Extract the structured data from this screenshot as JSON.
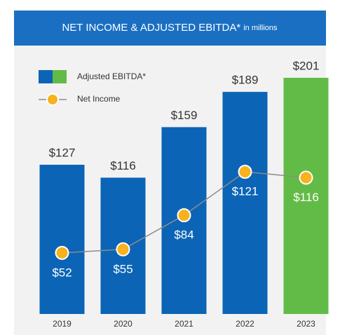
{
  "chart_data": {
    "type": "bar",
    "title": "NET INCOME & ADJUSTED EBITDA*",
    "subtitle": "in millions",
    "categories": [
      "2019",
      "2020",
      "2021",
      "2022",
      "2023"
    ],
    "series": [
      {
        "name": "Adjusted EBITDA*",
        "type": "bar",
        "colors": [
          "#0b64b6",
          "#0b64b6",
          "#0b64b6",
          "#0b64b6",
          "#62bb46"
        ],
        "values": [
          127,
          116,
          159,
          189,
          201
        ],
        "value_labels": [
          "$127",
          "$116",
          "$159",
          "$189",
          "$201"
        ]
      },
      {
        "name": "Net Income",
        "type": "line",
        "color": "#f7b21c",
        "line_color": "#8c8c8c",
        "values": [
          52,
          55,
          84,
          121,
          116
        ],
        "value_labels": [
          "$52",
          "$55",
          "$84",
          "$121",
          "$116"
        ]
      }
    ]
  }
}
